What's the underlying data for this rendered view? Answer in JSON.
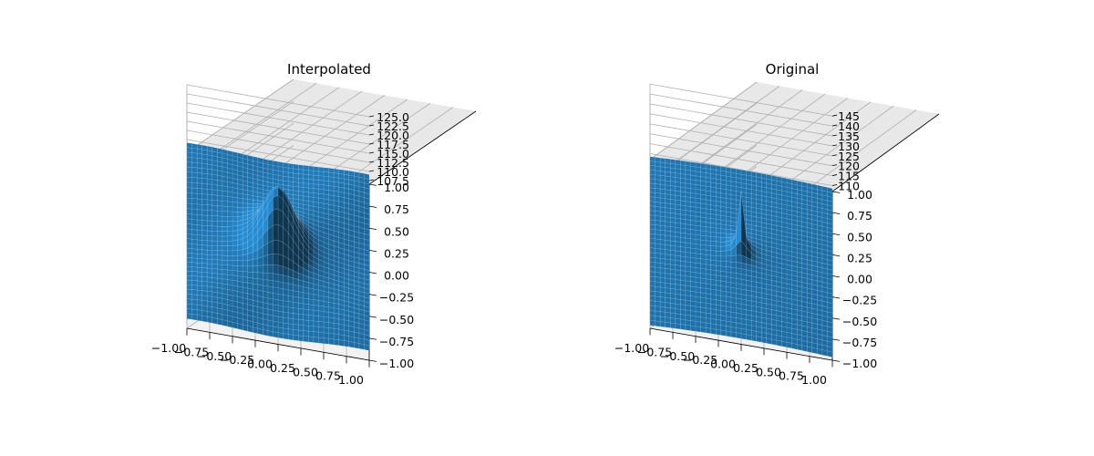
{
  "chart_data": [
    {
      "type": "surface",
      "title": "Interpolated",
      "x_ticks": [
        "−1.00",
        "−0.75",
        "−0.50",
        "−0.25",
        "0.00",
        "0.25",
        "0.50",
        "0.75",
        "1.00"
      ],
      "y_ticks": [
        "−1.00",
        "−0.75",
        "−0.50",
        "−0.25",
        "0.00",
        "0.25",
        "0.50",
        "0.75",
        "1.00"
      ],
      "z_ticks": [
        "107.5",
        "110.0",
        "112.5",
        "115.0",
        "117.5",
        "120.0",
        "122.5",
        "125.0"
      ],
      "xlim": [
        -1,
        1
      ],
      "ylim": [
        -1,
        1
      ],
      "zlim": [
        106.5,
        126.5
      ],
      "peak_z": 125.3,
      "base_z": 108.3,
      "grid": true,
      "surface_color": "#1f77b4"
    },
    {
      "type": "surface",
      "title": "Original",
      "x_ticks": [
        "−1.00",
        "−0.75",
        "−0.50",
        "−0.25",
        "0.00",
        "0.25",
        "0.50",
        "0.75",
        "1.00"
      ],
      "y_ticks": [
        "−1.00",
        "−0.75",
        "−0.50",
        "−0.25",
        "0.00",
        "0.25",
        "0.50",
        "0.75",
        "1.00"
      ],
      "z_ticks": [
        "110",
        "115",
        "120",
        "125",
        "130",
        "135",
        "140",
        "145"
      ],
      "xlim": [
        -1,
        1
      ],
      "ylim": [
        -1,
        1
      ],
      "zlim": [
        107,
        146
      ],
      "peak_z": 141,
      "base_z": 108.5,
      "grid": true,
      "surface_color": "#1f77b4"
    }
  ]
}
